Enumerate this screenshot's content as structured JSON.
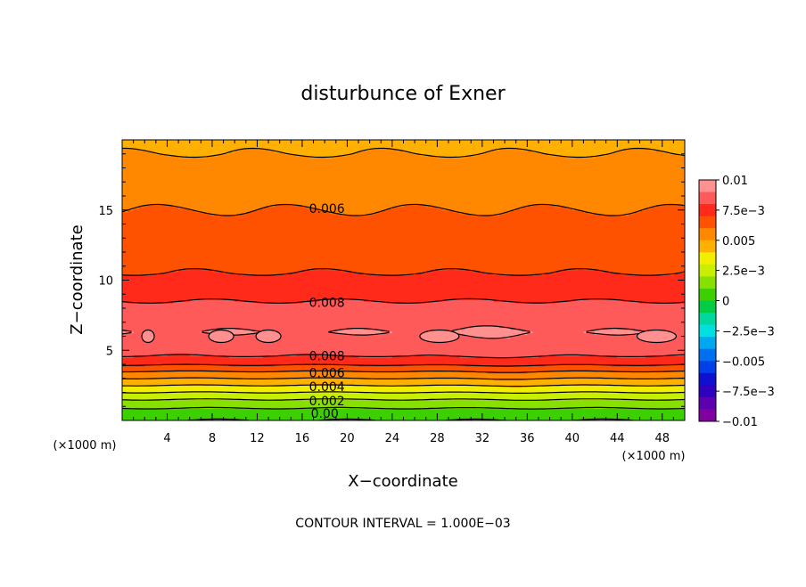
{
  "chart_data": {
    "type": "heatmap",
    "title": "disturbunce of Exner",
    "xlabel": "X−coordinate",
    "ylabel": "Z−coordinate",
    "x_unit": "(×1000 m)",
    "y_unit": "(×1000 m)",
    "xlim": [
      0,
      50
    ],
    "ylim": [
      0,
      20
    ],
    "xticks": [
      4,
      8,
      12,
      16,
      20,
      24,
      28,
      32,
      36,
      40,
      44,
      48
    ],
    "yticks": [
      5,
      10,
      15
    ],
    "grid": false,
    "footer": "CONTOUR INTERVAL = 1.000E−03",
    "contour_interval": 0.001,
    "z_profile": [
      {
        "z": 0.0,
        "v": 0.0
      },
      {
        "z": 0.5,
        "v": 0.0004
      },
      {
        "z": 1.0,
        "v": 0.0012
      },
      {
        "z": 1.5,
        "v": 0.002
      },
      {
        "z": 2.0,
        "v": 0.003
      },
      {
        "z": 2.5,
        "v": 0.004
      },
      {
        "z": 3.0,
        "v": 0.005
      },
      {
        "z": 3.5,
        "v": 0.006
      },
      {
        "z": 4.0,
        "v": 0.0071
      },
      {
        "z": 4.6,
        "v": 0.008
      },
      {
        "z": 5.5,
        "v": 0.0087
      },
      {
        "z": 6.3,
        "v": 0.009
      },
      {
        "z": 7.3,
        "v": 0.0087
      },
      {
        "z": 8.5,
        "v": 0.008
      },
      {
        "z": 10.5,
        "v": 0.007
      },
      {
        "z": 12.5,
        "v": 0.0065
      },
      {
        "z": 15.0,
        "v": 0.006
      },
      {
        "z": 17.5,
        "v": 0.0055
      },
      {
        "z": 19.0,
        "v": 0.005
      },
      {
        "z": 20.0,
        "v": 0.0048
      }
    ],
    "colorbar": {
      "min": -0.01,
      "max": 0.01,
      "labels": [
        "0.01",
        "7.5e−3",
        "0.005",
        "2.5e−3",
        "0",
        "−2.5e−3",
        "−0.005",
        "−7.5e−3",
        "−0.01"
      ],
      "colors": [
        "#ff9090",
        "#ff5a5a",
        "#ff2a1a",
        "#ff5200",
        "#ff8800",
        "#ffb000",
        "#f2ee00",
        "#c8ee00",
        "#88e000",
        "#3cd000",
        "#00cc44",
        "#00d8a0",
        "#00e0e0",
        "#00a8f0",
        "#0070f0",
        "#0040e8",
        "#1010d0",
        "#3000c0",
        "#5c00b0",
        "#8000a0"
      ]
    },
    "contour_labels": [
      {
        "text": "0.006",
        "x": 18.2,
        "z": 15.1
      },
      {
        "text": "0.008",
        "x": 18.2,
        "z": 8.4
      },
      {
        "text": "0.008",
        "x": 18.2,
        "z": 4.6
      },
      {
        "text": "0.006",
        "x": 18.2,
        "z": 3.4
      },
      {
        "text": "0.004",
        "x": 18.2,
        "z": 2.4
      },
      {
        "text": "0.002",
        "x": 18.2,
        "z": 1.4
      },
      {
        "text": "0.00",
        "x": 18.0,
        "z": 0.5
      }
    ],
    "maxima_cells": [
      {
        "x": 2.3,
        "z": 6.0
      },
      {
        "x": 8.8,
        "z": 6.0
      },
      {
        "x": 13.0,
        "z": 6.0
      },
      {
        "x": 28.2,
        "z": 6.0
      },
      {
        "x": 47.5,
        "z": 6.0
      }
    ]
  }
}
